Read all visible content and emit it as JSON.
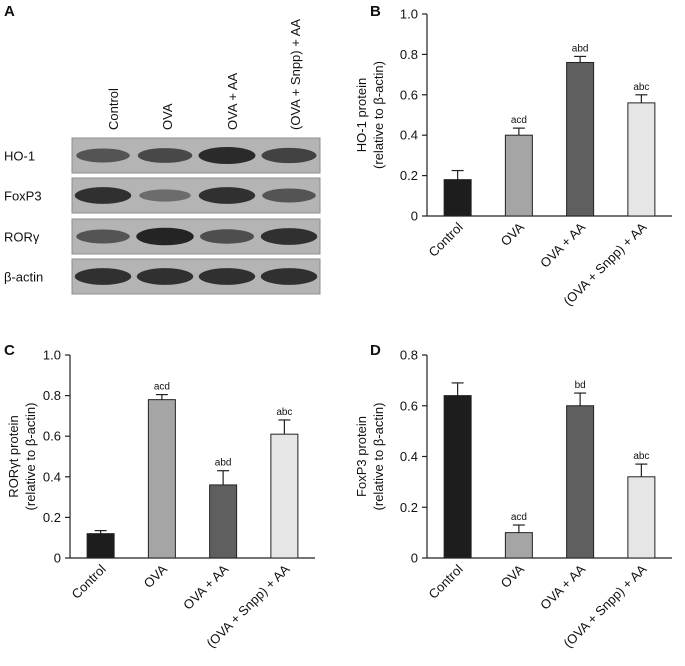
{
  "figure": {
    "blot": {
      "panel_label": "A",
      "conditions": [
        "Control",
        "OVA",
        "OVA + AA",
        "(OVA + Snpp) + AA"
      ],
      "rows": [
        {
          "label": "HO-1",
          "intensity": [
            0.55,
            0.65,
            0.9,
            0.7
          ]
        },
        {
          "label": "FoxP3",
          "intensity": [
            0.85,
            0.35,
            0.85,
            0.55
          ]
        },
        {
          "label": "RORγ",
          "intensity": [
            0.55,
            0.95,
            0.6,
            0.85
          ]
        },
        {
          "label": "β-actin",
          "intensity": [
            0.85,
            0.85,
            0.85,
            0.85
          ]
        }
      ]
    }
  },
  "chart_data": [
    {
      "type": "bar",
      "panel_label": "B",
      "categories": [
        "Control",
        "OVA",
        "OVA + AA",
        "(OVA + Snpp) + AA"
      ],
      "values": [
        0.18,
        0.4,
        0.76,
        0.56
      ],
      "errors": [
        0.045,
        0.035,
        0.03,
        0.04
      ],
      "annotations": [
        "",
        "acd",
        "abd",
        "abc"
      ],
      "colors": [
        "#1d1d1d",
        "#a5a5a5",
        "#5f5f5f",
        "#e6e6e6"
      ],
      "ylabel_lines": [
        "HO-1 protein",
        "(relative to β-actin)"
      ],
      "ylim": [
        0,
        1.0
      ],
      "yticks": [
        "0",
        "0.2",
        "0.4",
        "0.6",
        "0.8",
        "1.0"
      ],
      "grid": false
    },
    {
      "type": "bar",
      "panel_label": "C",
      "categories": [
        "Control",
        "OVA",
        "OVA + AA",
        "(OVA + Snpp) + AA"
      ],
      "values": [
        0.12,
        0.78,
        0.36,
        0.61
      ],
      "errors": [
        0.015,
        0.025,
        0.07,
        0.07
      ],
      "annotations": [
        "",
        "acd",
        "abd",
        "abc"
      ],
      "colors": [
        "#1d1d1d",
        "#a5a5a5",
        "#5f5f5f",
        "#e6e6e6"
      ],
      "ylabel_lines": [
        "RORγt protein",
        "(relative to β-actin)"
      ],
      "ylim": [
        0,
        1.0
      ],
      "yticks": [
        "0",
        "0.2",
        "0.4",
        "0.6",
        "0.8",
        "1.0"
      ],
      "grid": false
    },
    {
      "type": "bar",
      "panel_label": "D",
      "categories": [
        "Control",
        "OVA",
        "OVA + AA",
        "(OVA + Snpp) + AA"
      ],
      "values": [
        0.64,
        0.1,
        0.6,
        0.32
      ],
      "errors": [
        0.05,
        0.03,
        0.05,
        0.05
      ],
      "annotations": [
        "",
        "acd",
        "bd",
        "abc"
      ],
      "colors": [
        "#1d1d1d",
        "#a5a5a5",
        "#5f5f5f",
        "#e6e6e6"
      ],
      "ylabel_lines": [
        "FoxP3 protein",
        "(relative to β-actin)"
      ],
      "ylim": [
        0,
        0.8
      ],
      "yticks": [
        "0",
        "0.2",
        "0.4",
        "0.6",
        "0.8"
      ],
      "grid": false
    }
  ]
}
